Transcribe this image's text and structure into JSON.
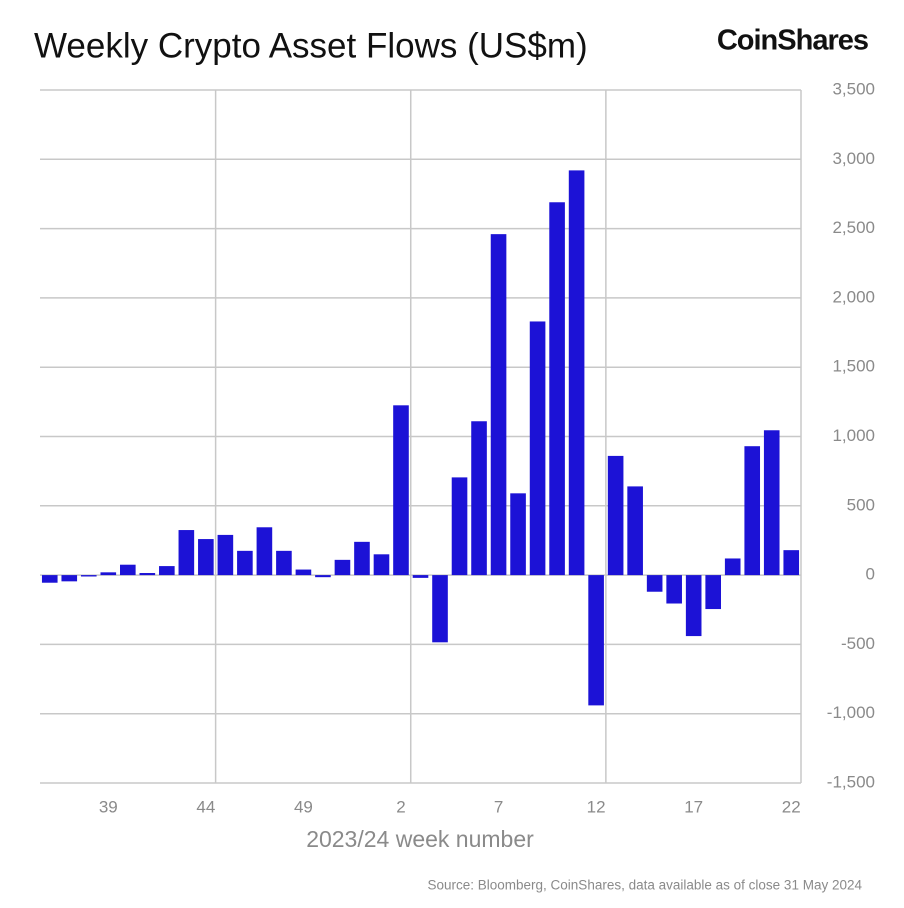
{
  "chart_data": {
    "type": "bar",
    "title": "Weekly Crypto Asset Flows (US$m)",
    "brand": "CoinShares",
    "x_label": "2023/24 week number",
    "source": "Source: Bloomberg, CoinShares, data available as of close 31 May 2024",
    "categories": [
      null,
      null,
      null,
      "39",
      null,
      null,
      null,
      null,
      "44",
      null,
      null,
      null,
      null,
      "49",
      null,
      null,
      null,
      null,
      "2",
      null,
      null,
      null,
      null,
      "7",
      null,
      null,
      null,
      null,
      "12",
      null,
      null,
      null,
      null,
      "17",
      null,
      null,
      null,
      null,
      "22"
    ],
    "values": [
      -55,
      -45,
      -10,
      20,
      75,
      15,
      65,
      325,
      260,
      290,
      175,
      345,
      175,
      40,
      -15,
      110,
      240,
      150,
      1225,
      -20,
      -485,
      705,
      1110,
      2460,
      590,
      1830,
      2690,
      2920,
      -940,
      860,
      640,
      -120,
      -205,
      -440,
      -245,
      120,
      930,
      1045,
      180
    ],
    "color": "#1c12d6",
    "ylim": [
      -1500,
      3500
    ],
    "yticks": [
      {
        "value": -1500,
        "label": "-1,500"
      },
      {
        "value": -1000,
        "label": "-1,000"
      },
      -500,
      0,
      500,
      {
        "value": 1000,
        "label": "1,000"
      },
      {
        "value": 1500,
        "label": "1,500"
      },
      {
        "value": 2000,
        "label": "2,000"
      },
      {
        "value": 2500,
        "label": "2,500"
      },
      {
        "value": 3000,
        "label": "3,000"
      },
      {
        "value": 3500,
        "label": "3,500"
      }
    ],
    "grid": true
  }
}
